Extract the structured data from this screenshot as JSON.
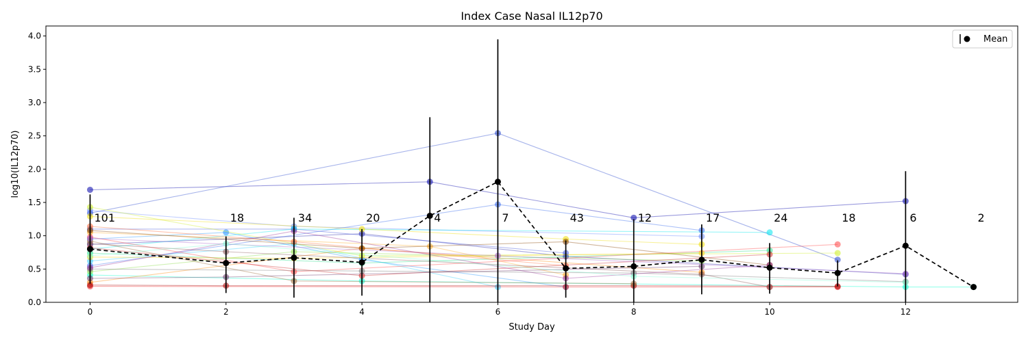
{
  "chart_data": {
    "type": "line",
    "title": "Index Case Nasal IL12p70",
    "xlabel": "Study Day",
    "ylabel": "log10(IL12p70)",
    "xlim": [
      -0.65,
      13.65
    ],
    "ylim": [
      0.0,
      4.15
    ],
    "xticks": [
      0,
      2,
      4,
      6,
      8,
      10,
      12
    ],
    "yticks": [
      "0.0",
      "0.5",
      "1.0",
      "1.5",
      "2.0",
      "2.5",
      "3.0",
      "3.5",
      "4.0"
    ],
    "grid": false,
    "legend": {
      "position": "top-right",
      "entries": [
        "Mean"
      ]
    },
    "mean_series": {
      "name": "Mean",
      "color": "#000000",
      "line_style": "dashed",
      "points": [
        {
          "x": 0,
          "y": 0.8,
          "lo": 0.28,
          "hi": 1.62
        },
        {
          "x": 2,
          "y": 0.59,
          "lo": 0.14,
          "hi": 0.99
        },
        {
          "x": 3,
          "y": 0.67,
          "lo": 0.07,
          "hi": 1.27
        },
        {
          "x": 4,
          "y": 0.6,
          "lo": 0.1,
          "hi": 1.1
        },
        {
          "x": 5,
          "y": 1.3,
          "lo": -0.2,
          "hi": 2.78
        },
        {
          "x": 6,
          "y": 1.81,
          "lo": -0.33,
          "hi": 3.95
        },
        {
          "x": 7,
          "y": 0.51,
          "lo": 0.07,
          "hi": 0.93
        },
        {
          "x": 8,
          "y": 0.54,
          "lo": -0.2,
          "hi": 1.25
        },
        {
          "x": 9,
          "y": 0.64,
          "lo": 0.12,
          "hi": 1.17
        },
        {
          "x": 10,
          "y": 0.52,
          "lo": 0.13,
          "hi": 0.89
        },
        {
          "x": 11,
          "y": 0.44,
          "lo": 0.24,
          "hi": 0.63
        },
        {
          "x": 12,
          "y": 0.85,
          "lo": -0.26,
          "hi": 1.97
        },
        {
          "x": 13,
          "y": 0.23,
          "lo": 0.23,
          "hi": 0.23
        }
      ]
    },
    "count_labels": [
      {
        "x": 0,
        "text": "101"
      },
      {
        "x": 2,
        "text": "18"
      },
      {
        "x": 3,
        "text": "34"
      },
      {
        "x": 4,
        "text": "20"
      },
      {
        "x": 5,
        "text": "4"
      },
      {
        "x": 6,
        "text": "7"
      },
      {
        "x": 7,
        "text": "43"
      },
      {
        "x": 8,
        "text": "12"
      },
      {
        "x": 9,
        "text": "17"
      },
      {
        "x": 10,
        "text": "24"
      },
      {
        "x": 11,
        "text": "18"
      },
      {
        "x": 12,
        "text": "6"
      },
      {
        "x": 13,
        "text": "2"
      }
    ],
    "individual_series": [
      {
        "color": "#0000aa",
        "points": [
          [
            0,
            1.69
          ],
          [
            5,
            1.81
          ],
          [
            8,
            1.27
          ],
          [
            12,
            1.52
          ]
        ]
      },
      {
        "color": "#3366ee",
        "points": [
          [
            0,
            0.55
          ],
          [
            6,
            1.47
          ],
          [
            9,
            1.08
          ]
        ]
      },
      {
        "color": "#2244cc",
        "points": [
          [
            0,
            1.34
          ],
          [
            6,
            2.54
          ],
          [
            11,
            0.64
          ]
        ]
      },
      {
        "color": "#2222aa",
        "points": [
          [
            0,
            0.87
          ],
          [
            4,
            1.03
          ],
          [
            7,
            0.69
          ],
          [
            12,
            0.42
          ]
        ]
      },
      {
        "color": "#6688ff",
        "points": [
          [
            0,
            1.38
          ],
          [
            3,
            1.14
          ],
          [
            9,
            0.99
          ]
        ]
      },
      {
        "color": "#4455dd",
        "points": [
          [
            0,
            1.1
          ],
          [
            3,
            1.1
          ],
          [
            7,
            0.74
          ]
        ]
      },
      {
        "color": "#1e90ff",
        "points": [
          [
            0,
            0.95
          ],
          [
            2,
            1.05
          ],
          [
            4,
            0.64
          ],
          [
            7,
            0.23
          ]
        ]
      },
      {
        "color": "#33ccff",
        "points": [
          [
            0,
            0.62
          ],
          [
            3,
            0.88
          ],
          [
            6,
            0.23
          ]
        ]
      },
      {
        "color": "#00e5ee",
        "points": [
          [
            0,
            0.8
          ],
          [
            3,
            1.1
          ],
          [
            10,
            1.05
          ]
        ]
      },
      {
        "color": "#00ffcc",
        "points": [
          [
            0,
            0.41
          ],
          [
            4,
            0.32
          ],
          [
            12,
            0.23
          ],
          [
            13,
            0.23
          ]
        ]
      },
      {
        "color": "#22dd88",
        "points": [
          [
            0,
            0.74
          ],
          [
            4,
            0.59
          ],
          [
            10,
            0.78
          ]
        ]
      },
      {
        "color": "#88dd44",
        "points": [
          [
            0,
            0.46
          ],
          [
            3,
            0.76
          ],
          [
            9,
            0.62
          ]
        ]
      },
      {
        "color": "#ccee22",
        "points": [
          [
            0,
            1.43
          ],
          [
            4,
            0.7
          ],
          [
            11,
            0.74
          ]
        ]
      },
      {
        "color": "#eedd00",
        "points": [
          [
            0,
            1.29
          ],
          [
            4,
            1.1
          ],
          [
            7,
            0.95
          ],
          [
            9,
            0.87
          ]
        ]
      },
      {
        "color": "#ffcc00",
        "points": [
          [
            0,
            0.68
          ],
          [
            3,
            0.66
          ],
          [
            9,
            0.74
          ]
        ]
      },
      {
        "color": "#ffaa22",
        "points": [
          [
            0,
            1.05
          ],
          [
            5,
            0.84
          ],
          [
            7,
            0.41
          ]
        ]
      },
      {
        "color": "#ff8800",
        "points": [
          [
            0,
            0.3
          ],
          [
            4,
            0.81
          ],
          [
            9,
            0.45
          ]
        ]
      },
      {
        "color": "#ff6633",
        "points": [
          [
            0,
            1.14
          ],
          [
            3,
            0.91
          ],
          [
            7,
            0.55
          ]
        ]
      },
      {
        "color": "#ff4444",
        "points": [
          [
            0,
            0.98
          ],
          [
            3,
            0.46
          ],
          [
            11,
            0.87
          ]
        ]
      },
      {
        "color": "#ee2222",
        "points": [
          [
            0,
            0.24
          ],
          [
            7,
            0.23
          ],
          [
            10,
            0.23
          ],
          [
            11,
            0.23
          ]
        ]
      },
      {
        "color": "#cc2222",
        "points": [
          [
            0,
            0.82
          ],
          [
            4,
            0.4
          ],
          [
            10,
            0.72
          ]
        ]
      },
      {
        "color": "#aa0000",
        "points": [
          [
            0,
            0.26
          ],
          [
            2,
            0.25
          ],
          [
            8,
            0.25
          ],
          [
            11,
            0.24
          ]
        ]
      },
      {
        "color": "#884400",
        "points": [
          [
            0,
            1.08
          ],
          [
            4,
            0.81
          ],
          [
            7,
            0.91
          ],
          [
            10,
            0.56
          ]
        ]
      },
      {
        "color": "#996633",
        "points": [
          [
            0,
            0.92
          ],
          [
            3,
            0.32
          ],
          [
            8,
            0.28
          ]
        ]
      },
      {
        "color": "#885555",
        "points": [
          [
            0,
            0.88
          ],
          [
            2,
            0.76
          ],
          [
            9,
            0.42
          ],
          [
            10,
            0.23
          ]
        ]
      },
      {
        "color": "#777777",
        "points": [
          [
            0,
            0.5
          ],
          [
            4,
            0.47
          ],
          [
            8,
            0.44
          ],
          [
            12,
            0.31
          ]
        ]
      },
      {
        "color": "#993399",
        "points": [
          [
            0,
            0.52
          ],
          [
            3,
            1.07
          ],
          [
            7,
            0.36
          ],
          [
            10,
            0.56
          ]
        ]
      },
      {
        "color": "#663366",
        "points": [
          [
            0,
            0.36
          ],
          [
            2,
            0.38
          ],
          [
            9,
            0.54
          ]
        ]
      },
      {
        "color": "#aa66cc",
        "points": [
          [
            0,
            0.96
          ],
          [
            6,
            0.7
          ],
          [
            12,
            0.43
          ]
        ]
      },
      {
        "color": "#7fffd4",
        "points": [
          [
            0,
            0.7
          ],
          [
            2,
            0.88
          ],
          [
            8,
            0.39
          ],
          [
            12,
            0.3
          ]
        ]
      }
    ]
  }
}
